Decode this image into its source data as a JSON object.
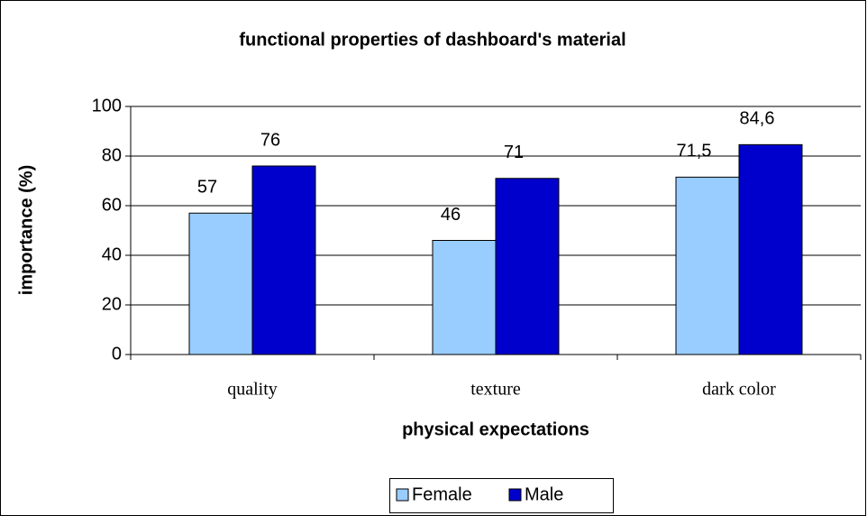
{
  "chart_data": {
    "type": "bar",
    "title": "functional properties of dashboard's material",
    "xlabel": "physical expectations",
    "ylabel": "importance (%)",
    "categories": [
      "quality",
      "texture",
      "dark color"
    ],
    "series": [
      {
        "name": "Female",
        "color": "#99ccff",
        "values": [
          57,
          46,
          71.5
        ],
        "value_labels": [
          "57",
          "46",
          "71,5"
        ]
      },
      {
        "name": "Male",
        "color": "#0000cc",
        "values": [
          76,
          71,
          84.6
        ],
        "value_labels": [
          "76",
          "71",
          "84,6"
        ]
      }
    ],
    "ylim": [
      0,
      100
    ],
    "yticks": [
      0,
      20,
      40,
      60,
      80,
      100
    ],
    "grid": true,
    "legend": "bottom"
  }
}
